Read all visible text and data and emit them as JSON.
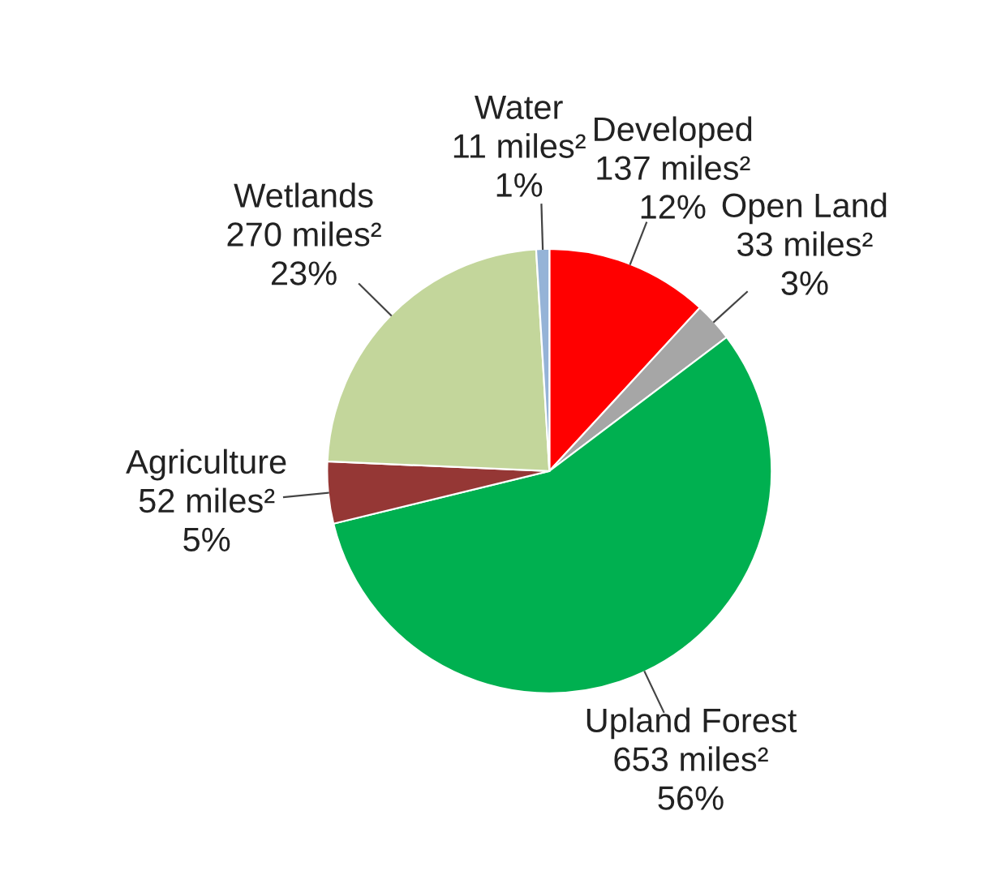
{
  "chart_data": {
    "type": "pie",
    "categories": [
      "Developed",
      "Open Land",
      "Upland Forest",
      "Agriculture",
      "Wetlands",
      "Water"
    ],
    "values": [
      137,
      33,
      653,
      52,
      270,
      11
    ],
    "colors": [
      "#ff0000",
      "#a6a6a6",
      "#00b050",
      "#953735",
      "#c3d69b",
      "#95b3d7"
    ],
    "value_labels": [
      "137 miles²\n12%",
      "33 miles²\n3%",
      "653 miles²\n56%",
      "52 miles²\n5%",
      "270 miles²\n23%",
      "11 miles²\n1%"
    ]
  }
}
